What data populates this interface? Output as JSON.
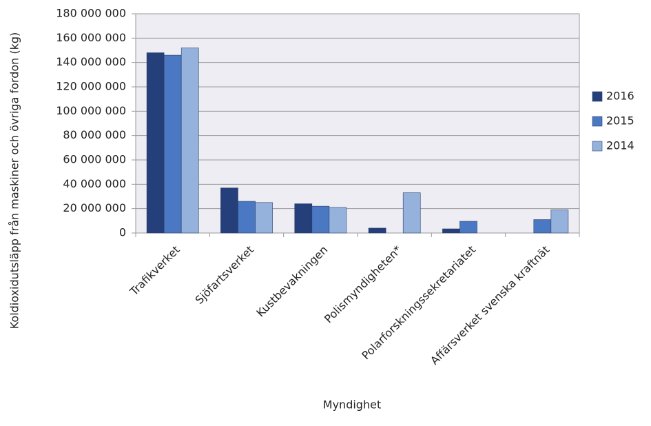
{
  "chart_data": {
    "type": "bar",
    "x_label": "Myndighet",
    "y_label": "Koldioxidutsläpp från maskiner och övriga fordon (kg)",
    "categories": [
      "Trafikverket",
      "Sjöfartsverket",
      "Kustbevakningen",
      "Polismyndigheten*",
      "Polarforskningssekretariatet",
      "Affärsverket svenska kraftnät"
    ],
    "series": [
      {
        "name": "2016",
        "color": "#243f7a",
        "values": [
          148000000,
          37000000,
          24000000,
          4000000,
          3400000,
          null
        ]
      },
      {
        "name": "2015",
        "color": "#4a78c2",
        "values": [
          146000000,
          26000000,
          22000000,
          null,
          9600000,
          11000000
        ]
      },
      {
        "name": "2014",
        "color": "#95b2dd",
        "values": [
          152000000,
          25000000,
          21000000,
          33000000,
          null,
          19000000
        ]
      }
    ],
    "ylim": [
      0,
      180000000
    ],
    "yticks": [
      0,
      {
        "value": 20000000,
        "label": "20 000 000"
      },
      {
        "value": 40000000,
        "label": "40 000 000"
      },
      {
        "value": 60000000,
        "label": "60 000 000"
      },
      {
        "value": 80000000,
        "label": "80 000 000"
      },
      {
        "value": 100000000,
        "label": "100 000 000"
      },
      {
        "value": 120000000,
        "label": "120 000 000"
      },
      {
        "value": 140000000,
        "label": "140 000 000"
      },
      {
        "value": 160000000,
        "label": "160 000 000"
      },
      {
        "value": 180000000,
        "label": "180 000 000"
      }
    ],
    "grid": true,
    "legend": "right"
  }
}
